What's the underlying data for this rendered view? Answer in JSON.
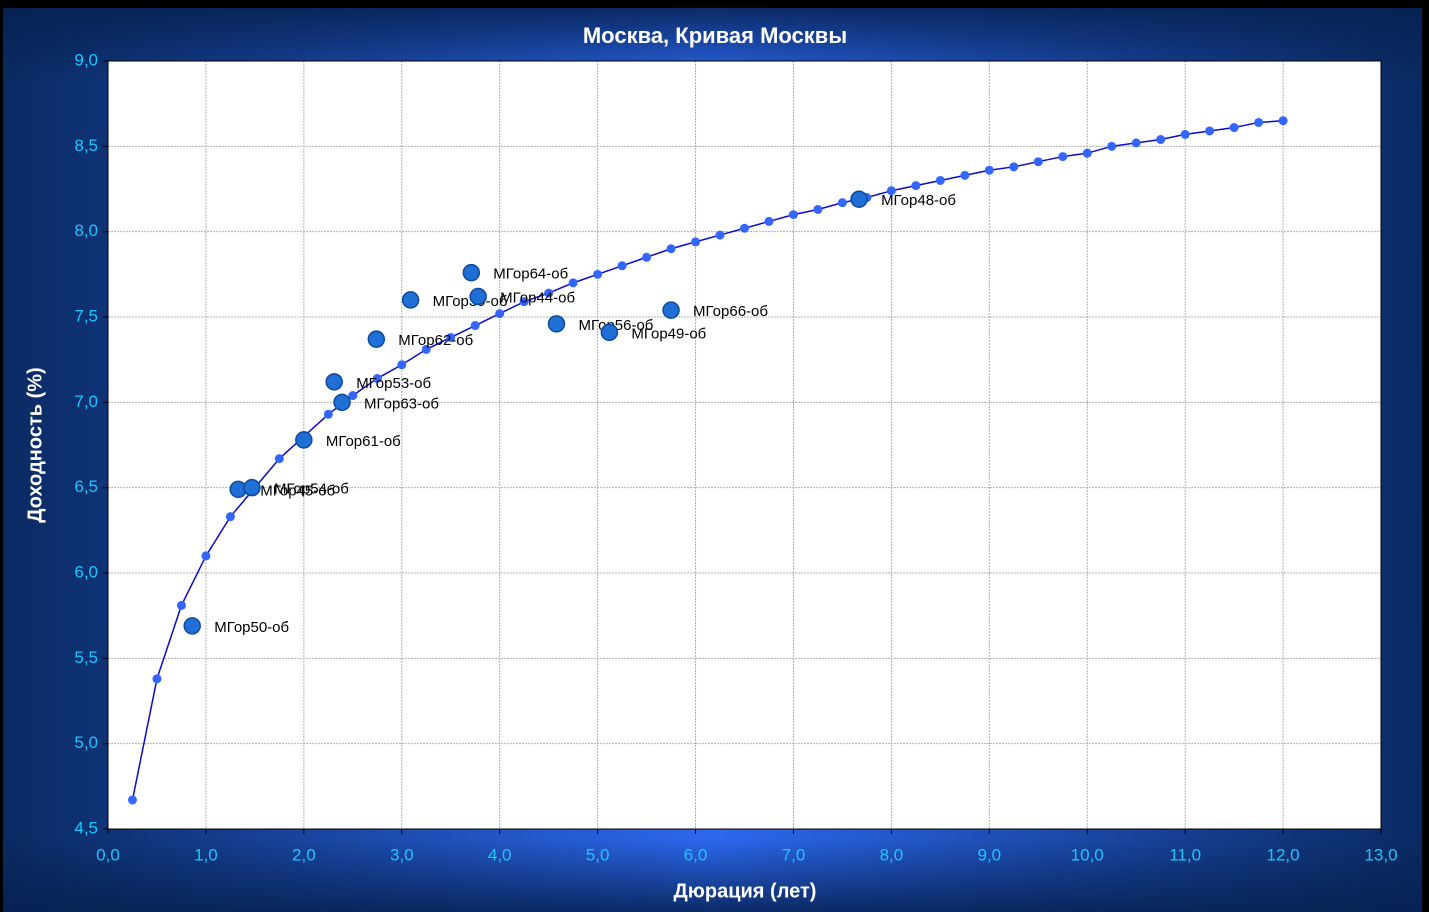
{
  "chart_data": {
    "type": "scatter",
    "title": "Москва, Кривая Москвы",
    "x_label": "Дюрация (лет)",
    "y_label": "Доходность (%)",
    "xlim": [
      0,
      13
    ],
    "ylim": [
      4.5,
      9.0
    ],
    "grid": true,
    "xticks": [
      {
        "value": 0,
        "label": "0,0"
      },
      {
        "value": 1,
        "label": "1,0"
      },
      {
        "value": 2,
        "label": "2,0"
      },
      {
        "value": 3,
        "label": "3,0"
      },
      {
        "value": 4,
        "label": "4,0"
      },
      {
        "value": 5,
        "label": "5,0"
      },
      {
        "value": 6,
        "label": "6,0"
      },
      {
        "value": 7,
        "label": "7,0"
      },
      {
        "value": 8,
        "label": "8,0"
      },
      {
        "value": 9,
        "label": "9,0"
      },
      {
        "value": 10,
        "label": "10,0"
      },
      {
        "value": 11,
        "label": "11,0"
      },
      {
        "value": 12,
        "label": "12,0"
      },
      {
        "value": 13,
        "label": "13,0"
      }
    ],
    "yticks": [
      {
        "value": 4.5,
        "label": "4,5"
      },
      {
        "value": 5.0,
        "label": "5,0"
      },
      {
        "value": 5.5,
        "label": "5,5"
      },
      {
        "value": 6.0,
        "label": "6,0"
      },
      {
        "value": 6.5,
        "label": "6,5"
      },
      {
        "value": 7.0,
        "label": "7,0"
      },
      {
        "value": 7.5,
        "label": "7,5"
      },
      {
        "value": 8.0,
        "label": "8,0"
      },
      {
        "value": 8.5,
        "label": "8,5"
      },
      {
        "value": 9.0,
        "label": "9,0"
      }
    ],
    "curve": {
      "color": "#0a0ad0",
      "marker_color": "#3366ff",
      "x": [
        0.25,
        0.5,
        0.75,
        1.0,
        1.25,
        1.5,
        1.75,
        2.0,
        2.25,
        2.5,
        2.75,
        3.0,
        3.25,
        3.5,
        3.75,
        4.0,
        4.25,
        4.5,
        4.75,
        5.0,
        5.25,
        5.5,
        5.75,
        6.0,
        6.25,
        6.5,
        6.75,
        7.0,
        7.25,
        7.5,
        7.75,
        8.0,
        8.25,
        8.5,
        8.75,
        9.0,
        9.25,
        9.5,
        9.75,
        10.0,
        10.25,
        10.5,
        10.75,
        11.0,
        11.25,
        11.5,
        11.75,
        12.0
      ],
      "values": [
        4.67,
        5.38,
        5.81,
        6.1,
        6.33,
        6.5,
        6.67,
        6.8,
        6.93,
        7.04,
        7.14,
        7.22,
        7.31,
        7.38,
        7.45,
        7.52,
        7.59,
        7.64,
        7.7,
        7.75,
        7.8,
        7.85,
        7.9,
        7.94,
        7.98,
        8.02,
        8.06,
        8.1,
        8.13,
        8.17,
        8.2,
        8.24,
        8.27,
        8.3,
        8.33,
        8.36,
        8.38,
        8.41,
        8.44,
        8.46,
        8.5,
        8.52,
        8.54,
        8.57,
        8.59,
        8.61,
        8.64,
        8.65
      ]
    },
    "bonds": {
      "color": "#1f6fd6",
      "names": [
        "МГор50-об",
        "МГор45-об",
        "МГор54-об",
        "МГор61-об",
        "МГор53-об",
        "МГор63-об",
        "МГор62-об",
        "МГор39-об",
        "МГор64-об",
        "МГор44-об",
        "МГор56-об",
        "МГор49-об",
        "МГор66-об",
        "МГор48-об"
      ],
      "x": [
        0.86,
        1.33,
        1.47,
        2.0,
        2.31,
        2.39,
        2.74,
        3.09,
        3.71,
        3.78,
        4.58,
        5.12,
        5.75,
        7.67
      ],
      "values": [
        5.69,
        6.49,
        6.5,
        6.78,
        7.12,
        7.0,
        7.37,
        7.6,
        7.76,
        7.62,
        7.46,
        7.41,
        7.54,
        8.19
      ]
    }
  }
}
